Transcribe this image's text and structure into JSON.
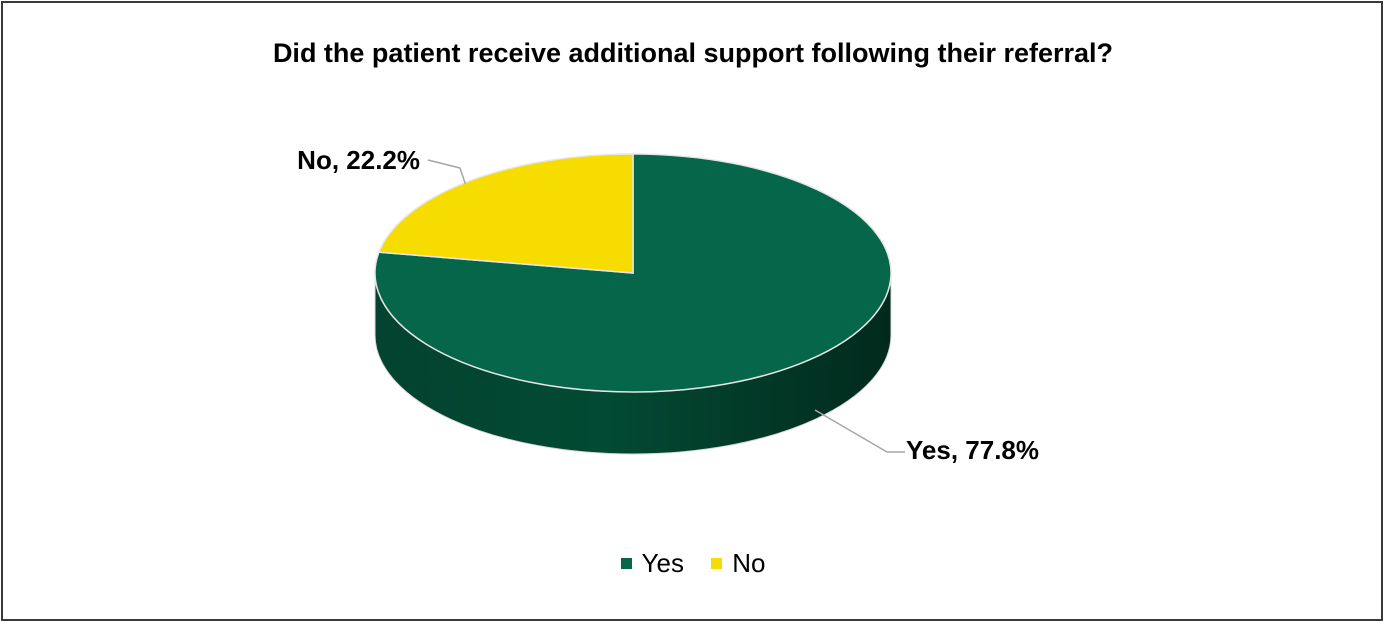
{
  "chart_data": {
    "type": "pie",
    "title": "Did the patient receive additional support following their referral?",
    "slices": [
      {
        "name": "Yes",
        "value": 77.8,
        "label": "Yes, 77.8%",
        "color": "#05664a"
      },
      {
        "name": "No",
        "value": 22.2,
        "label": "No, 22.2%",
        "color": "#f7dc00"
      }
    ],
    "legend": {
      "position": "bottom",
      "entries": [
        "Yes",
        "No"
      ]
    },
    "style": "3d"
  }
}
